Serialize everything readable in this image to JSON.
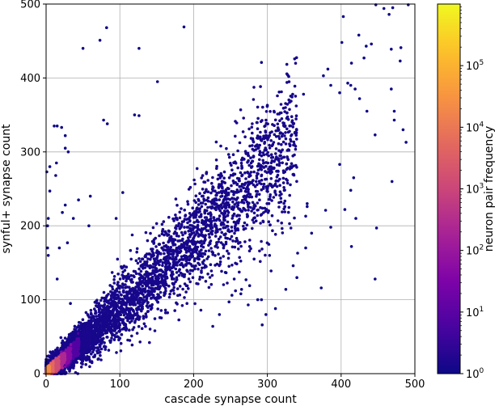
{
  "chart_data": {
    "type": "heatmap",
    "title": "",
    "xlabel": "cascade synapse count",
    "ylabel": "synful+ synapse count",
    "xlim": [
      0,
      500
    ],
    "ylim": [
      0,
      500
    ],
    "xticks": [
      0,
      100,
      200,
      300,
      400,
      500
    ],
    "yticks": [
      0,
      100,
      200,
      300,
      400,
      500
    ],
    "grid": true,
    "x_tick_labels": [
      "0",
      "100",
      "200",
      "300",
      "400",
      "500"
    ],
    "y_tick_labels": [
      "0",
      "100",
      "200",
      "300",
      "400",
      "500"
    ],
    "colormap": "plasma",
    "colorbar": {
      "label": "neuron pair frequency",
      "scale": "log",
      "range": [
        1,
        1000000
      ],
      "tick_values": [
        1,
        10,
        100,
        1000,
        10000,
        100000
      ],
      "tick_labels": [
        {
          "base": "10",
          "exp": "0"
        },
        {
          "base": "10",
          "exp": "1"
        },
        {
          "base": "10",
          "exp": "2"
        },
        {
          "base": "10",
          "exp": "3"
        },
        {
          "base": "10",
          "exp": "4"
        },
        {
          "base": "10",
          "exp": "5"
        }
      ]
    },
    "density_trend": {
      "description_x": [
        0,
        20,
        50,
        100,
        150,
        200,
        250,
        300,
        350,
        380
      ],
      "description_y": [
        0,
        17,
        42,
        88,
        135,
        180,
        230,
        280,
        330,
        350
      ],
      "peak_frequency_near_origin": 800000
    },
    "outlier_points": [
      [
        50,
        440
      ],
      [
        73,
        451
      ],
      [
        82,
        468
      ],
      [
        126,
        440
      ],
      [
        187,
        469
      ],
      [
        151,
        395
      ],
      [
        78,
        343
      ],
      [
        83,
        338
      ],
      [
        120,
        350
      ],
      [
        126,
        349
      ],
      [
        104,
        245
      ],
      [
        95,
        210
      ],
      [
        11,
        335
      ],
      [
        15,
        335
      ],
      [
        21,
        333
      ],
      [
        26,
        322
      ],
      [
        26,
        305
      ],
      [
        30,
        300
      ],
      [
        29,
        177
      ],
      [
        3,
        210
      ],
      [
        3,
        160
      ],
      [
        5,
        280
      ],
      [
        1,
        273
      ],
      [
        5,
        247
      ],
      [
        2,
        200
      ],
      [
        2,
        170
      ],
      [
        13,
        268
      ],
      [
        14,
        285
      ],
      [
        18,
        170
      ],
      [
        22,
        218
      ],
      [
        26,
        228
      ],
      [
        37,
        210
      ],
      [
        44,
        235
      ],
      [
        58,
        200
      ],
      [
        60,
        240
      ],
      [
        33,
        95
      ],
      [
        15,
        128
      ],
      [
        292,
        421
      ],
      [
        300,
        363
      ],
      [
        316,
        381
      ],
      [
        329,
        402
      ],
      [
        349,
        378
      ],
      [
        376,
        403
      ],
      [
        382,
        412
      ],
      [
        386,
        390
      ],
      [
        398,
        380
      ],
      [
        409,
        393
      ],
      [
        413,
        390
      ],
      [
        419,
        385
      ],
      [
        425,
        372
      ],
      [
        441,
        446
      ],
      [
        401,
        448
      ],
      [
        403,
        483
      ],
      [
        414,
        420
      ],
      [
        424,
        458
      ],
      [
        434,
        443
      ],
      [
        431,
        427
      ],
      [
        447,
        499
      ],
      [
        458,
        494
      ],
      [
        465,
        486
      ],
      [
        470,
        495
      ],
      [
        468,
        439
      ],
      [
        491,
        499
      ],
      [
        481,
        441
      ],
      [
        480,
        423
      ],
      [
        468,
        385
      ],
      [
        472,
        355
      ],
      [
        472,
        343
      ],
      [
        484,
        330
      ],
      [
        488,
        313
      ],
      [
        446,
        323
      ],
      [
        435,
        355
      ],
      [
        398,
        283
      ],
      [
        413,
        248
      ],
      [
        417,
        265
      ],
      [
        405,
        222
      ],
      [
        386,
        198
      ],
      [
        354,
        230
      ],
      [
        352,
        213
      ],
      [
        354,
        226
      ],
      [
        379,
        221
      ],
      [
        360,
        190
      ],
      [
        420,
        210
      ],
      [
        414,
        172
      ],
      [
        448,
        197
      ],
      [
        469,
        260
      ],
      [
        446,
        128
      ],
      [
        373,
        116
      ],
      [
        340,
        130
      ],
      [
        352,
        170
      ],
      [
        335,
        146
      ],
      [
        341,
        163
      ],
      [
        330,
        203
      ],
      [
        325,
        114
      ],
      [
        292,
        100
      ],
      [
        305,
        139
      ],
      [
        303,
        160
      ],
      [
        302,
        175
      ],
      [
        282,
        155
      ],
      [
        276,
        172
      ],
      [
        276,
        119
      ],
      [
        264,
        108
      ],
      [
        252,
        106
      ],
      [
        248,
        97
      ],
      [
        235,
        80
      ],
      [
        226,
        64
      ],
      [
        265,
        114
      ],
      [
        311,
        88
      ],
      [
        298,
        80
      ],
      [
        293,
        66
      ],
      [
        274,
        93
      ],
      [
        287,
        100
      ],
      [
        271,
        127
      ],
      [
        255,
        128
      ],
      [
        243,
        137
      ]
    ]
  }
}
